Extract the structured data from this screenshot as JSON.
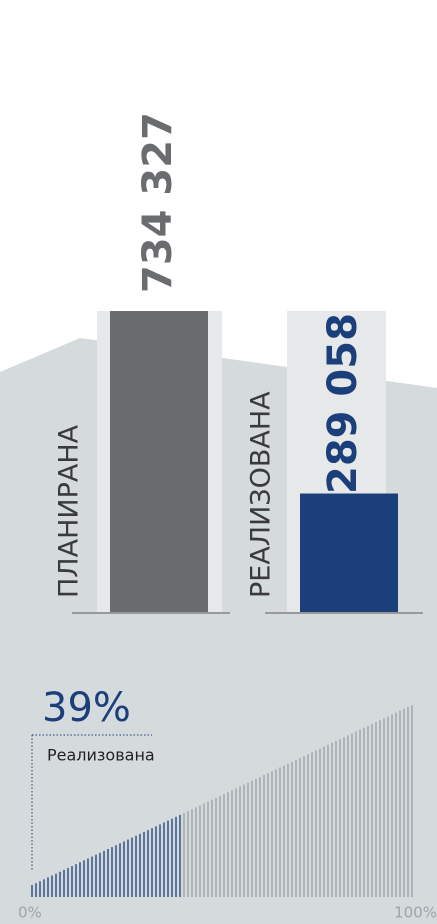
{
  "chart_data": [
    {
      "type": "bar",
      "categories": [
        "ПЛАНИРАНА",
        "РЕАЛИЗОВАНА"
      ],
      "values": [
        734327,
        289058
      ],
      "value_labels": [
        "734 327",
        "289 058"
      ],
      "colors": [
        "#6b6c6f",
        "#1b3f7a"
      ],
      "label_colors": [
        "#6b6c6f",
        "#1b3f7a"
      ]
    },
    {
      "type": "progress",
      "values": [
        39
      ],
      "value_labels": [
        "39%"
      ],
      "label": "Реализована",
      "color": "#1b3f7a",
      "xlim": [
        0,
        100
      ],
      "xticks": [
        {
          "value": 0,
          "label": "0%"
        },
        {
          "value": 100,
          "label": "100%"
        }
      ]
    }
  ]
}
